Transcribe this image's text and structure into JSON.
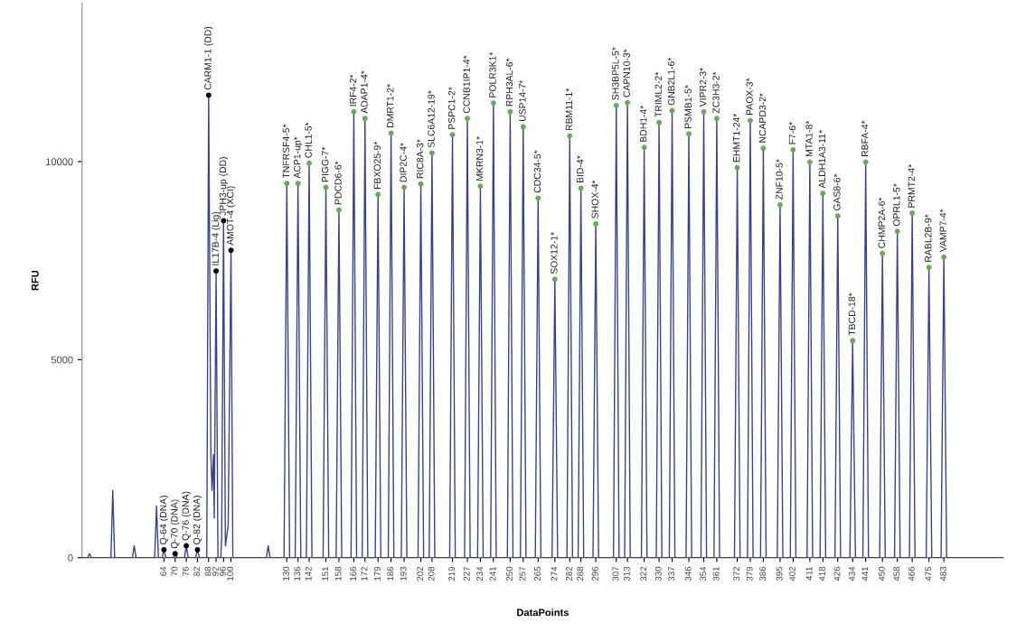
{
  "chart_data": {
    "type": "line",
    "xlabel": "DataPoints",
    "ylabel": "RFU",
    "xlim": [
      20,
      515
    ],
    "ylim": [
      0,
      14000
    ],
    "yticks": [
      0,
      5000,
      10000
    ],
    "xticks": [
      64,
      70,
      76,
      82,
      88,
      92,
      96,
      100,
      130,
      136,
      142,
      151,
      158,
      166,
      172,
      179,
      186,
      193,
      202,
      208,
      219,
      227,
      234,
      241,
      250,
      257,
      265,
      274,
      282,
      288,
      296,
      307,
      313,
      322,
      330,
      337,
      346,
      354,
      361,
      372,
      379,
      386,
      395,
      402,
      411,
      418,
      426,
      434,
      441,
      450,
      458,
      466,
      475,
      483
    ],
    "series": [
      {
        "color": "#3a4288",
        "marker": "none",
        "x": [
          20,
          23,
          24,
          25,
          35.5,
          36.5,
          37.5,
          47,
          48,
          49,
          59,
          60,
          61,
          63,
          64,
          65,
          69,
          70,
          71,
          75,
          76,
          77,
          81,
          82,
          83,
          87,
          88,
          89.2,
          89.8,
          90.6,
          91,
          92,
          93,
          94.5,
          95,
          96,
          97,
          98.5,
          100,
          101,
          119,
          120,
          121,
          128.5,
          130,
          131.5,
          134.5,
          136,
          137.5,
          140.5,
          142,
          143.5,
          149.5,
          151,
          152.5,
          156.5,
          158,
          159.5,
          164.5,
          166,
          167.5,
          170.5,
          172,
          173.5,
          177.5,
          179,
          180.5,
          184.5,
          186,
          187.5,
          191.5,
          193,
          194.5,
          200.5,
          202,
          203.5,
          206.5,
          208,
          209.5,
          217.5,
          219,
          220.5,
          225.5,
          227,
          228.5,
          232.5,
          234,
          235.5,
          239.5,
          241,
          242.5,
          248.5,
          250,
          251.5,
          255.5,
          257,
          258.5,
          263.5,
          265,
          266.5,
          272.5,
          274,
          275.5,
          280.5,
          282,
          283.5,
          286.5,
          288,
          289.5,
          294.5,
          296,
          297.5,
          305.5,
          307,
          308.5,
          311.5,
          313,
          314.5,
          320.5,
          322,
          323.5,
          328.5,
          330,
          331.5,
          335.5,
          337,
          338.5,
          344.5,
          346,
          347.5,
          352.5,
          354,
          355.5,
          359.5,
          361,
          362.5,
          370.5,
          372,
          373.5,
          377.5,
          379,
          380.5,
          384.5,
          386,
          387.5,
          393.5,
          395,
          396.5,
          400.5,
          402,
          403.5,
          409.5,
          411,
          412.5,
          416.5,
          418,
          419.5,
          424.5,
          426,
          427.5,
          432.5,
          434,
          435.5,
          439.5,
          441,
          442.5,
          448.5,
          450,
          451.5,
          456.5,
          458,
          459.5,
          464.5,
          466,
          467.5,
          473.5,
          475,
          476.5,
          481.5,
          483,
          484.5,
          515
        ],
        "values": [
          0,
          0,
          100,
          0,
          0,
          1700,
          0,
          0,
          300,
          0,
          0,
          1300,
          0,
          0,
          200,
          0,
          0,
          100,
          0,
          0,
          300,
          0,
          0,
          200,
          0,
          0,
          11680,
          2600,
          1700,
          2600,
          1000,
          7240,
          0,
          0,
          500,
          8510,
          300,
          800,
          7760,
          0,
          0,
          300,
          0,
          0,
          9450,
          0,
          0,
          9450,
          0,
          0,
          9960,
          0,
          0,
          9350,
          0,
          0,
          8780,
          0,
          0,
          11260,
          0,
          0,
          11090,
          0,
          0,
          9170,
          0,
          0,
          10720,
          0,
          0,
          9350,
          0,
          0,
          9440,
          0,
          0,
          10220,
          0,
          0,
          10680,
          0,
          0,
          11090,
          0,
          0,
          9380,
          0,
          0,
          11480,
          0,
          0,
          11260,
          0,
          0,
          10880,
          0,
          0,
          9080,
          0,
          0,
          7030,
          0,
          0,
          10650,
          0,
          0,
          9330,
          0,
          0,
          8430,
          0,
          0,
          11420,
          0,
          0,
          11490,
          0,
          0,
          10360,
          0,
          0,
          10990,
          0,
          0,
          11290,
          0,
          0,
          10700,
          0,
          0,
          11260,
          0,
          0,
          11090,
          0,
          0,
          9850,
          0,
          0,
          11040,
          0,
          0,
          10340,
          0,
          0,
          8910,
          0,
          0,
          10300,
          0,
          0,
          9990,
          0,
          0,
          9200,
          0,
          0,
          8630,
          0,
          0,
          5480,
          0,
          0,
          9990,
          0,
          0,
          7680,
          0,
          0,
          8240,
          0,
          0,
          8700,
          0,
          0,
          7330,
          0,
          0,
          7590,
          0,
          0
        ]
      },
      {
        "type": "scatter",
        "color": "#000000",
        "marker": "circle",
        "x": [
          64,
          70,
          76,
          82,
          88,
          92,
          96,
          100
        ],
        "values": [
          200,
          100,
          300,
          200,
          11680,
          7240,
          8510,
          7760
        ]
      },
      {
        "type": "scatter",
        "color": "#6aaa5a",
        "marker": "circle",
        "x": [
          130,
          136,
          142,
          151,
          158,
          166,
          172,
          179,
          186,
          193,
          202,
          208,
          219,
          227,
          234,
          241,
          250,
          257,
          265,
          274,
          282,
          288,
          296,
          307,
          313,
          322,
          330,
          337,
          346,
          354,
          361,
          372,
          379,
          386,
          395,
          402,
          411,
          418,
          426,
          434,
          441,
          450,
          458,
          466,
          475,
          483
        ],
        "values": [
          9450,
          9450,
          9960,
          9350,
          8780,
          11260,
          11090,
          9170,
          10720,
          9350,
          9440,
          10220,
          10680,
          11090,
          9380,
          11480,
          11260,
          10880,
          9080,
          7030,
          10650,
          9330,
          8430,
          11420,
          11490,
          10360,
          10990,
          11290,
          10700,
          11260,
          11090,
          9850,
          11040,
          10340,
          8910,
          10300,
          9990,
          9200,
          8630,
          5480,
          9990,
          7680,
          8240,
          8700,
          7330,
          7590
        ]
      }
    ],
    "annotations": [
      {
        "text": "Q-64 (DNA)",
        "x": 64,
        "y": 200
      },
      {
        "text": "Q-70 (DNA)",
        "x": 70,
        "y": 100
      },
      {
        "text": "Q-76 (DNA)",
        "x": 76,
        "y": 300
      },
      {
        "text": "Q-82 (DNA)",
        "x": 82,
        "y": 200
      },
      {
        "text": "CARM1-1 (DD)",
        "x": 88,
        "y": 11680
      },
      {
        "text": "IL17B-4 (Lig)",
        "x": 92,
        "y": 7240
      },
      {
        "text": "JPH3-up (DD)",
        "x": 96,
        "y": 8510
      },
      {
        "text": "AMOT-4 (XCI)",
        "x": 100,
        "y": 7760
      },
      {
        "text": "TNFRSF4-5*",
        "x": 130,
        "y": 9450
      },
      {
        "text": "ACP1-up*",
        "x": 136,
        "y": 9450
      },
      {
        "text": "CHL1-5*",
        "x": 142,
        "y": 9960
      },
      {
        "text": "PIGG-7*",
        "x": 151,
        "y": 9350
      },
      {
        "text": "PDCD6-6*",
        "x": 158,
        "y": 8780
      },
      {
        "text": "IRF4-2*",
        "x": 166,
        "y": 11260
      },
      {
        "text": "ADAP1-4*",
        "x": 172,
        "y": 11090
      },
      {
        "text": "FBXO25-9*",
        "x": 179,
        "y": 9170
      },
      {
        "text": "DMRT1-2*",
        "x": 186,
        "y": 10720
      },
      {
        "text": "DIP2C-4*",
        "x": 193,
        "y": 9350
      },
      {
        "text": "RIC8A-3*",
        "x": 202,
        "y": 9440
      },
      {
        "text": "SLC6A12-19*",
        "x": 208,
        "y": 10220
      },
      {
        "text": "PSPC1-2*",
        "x": 219,
        "y": 10680
      },
      {
        "text": "CCNB1IP1-4*",
        "x": 227,
        "y": 11090
      },
      {
        "text": "MKRN3-1*",
        "x": 234,
        "y": 9380
      },
      {
        "text": "POLR3K1*",
        "x": 241,
        "y": 11480
      },
      {
        "text": "RPH3AL-6*",
        "x": 250,
        "y": 11260
      },
      {
        "text": "USP14-7*",
        "x": 257,
        "y": 10880
      },
      {
        "text": "CDC34-5*",
        "x": 265,
        "y": 9080
      },
      {
        "text": "SOX12-1*",
        "x": 274,
        "y": 7030
      },
      {
        "text": "RBM11-1*",
        "x": 282,
        "y": 10650
      },
      {
        "text": "BID-4*",
        "x": 288,
        "y": 9330
      },
      {
        "text": "SHOX-4*",
        "x": 296,
        "y": 8430
      },
      {
        "text": "SH3BP5L-5*",
        "x": 307,
        "y": 11420
      },
      {
        "text": "CAPN10-3*",
        "x": 313,
        "y": 11490
      },
      {
        "text": "BDH1-4*",
        "x": 322,
        "y": 10360
      },
      {
        "text": "TRIML2-2*",
        "x": 330,
        "y": 10990
      },
      {
        "text": "GNB2L1-6*",
        "x": 337,
        "y": 11290
      },
      {
        "text": "PSMB1-5*",
        "x": 346,
        "y": 10700
      },
      {
        "text": "VIPR2-3*",
        "x": 354,
        "y": 11260
      },
      {
        "text": "ZC3H3-2*",
        "x": 361,
        "y": 11090
      },
      {
        "text": "EHMT1-24*",
        "x": 372,
        "y": 9850
      },
      {
        "text": "PAOX-3*",
        "x": 379,
        "y": 11040
      },
      {
        "text": "NCAPD3-2*",
        "x": 386,
        "y": 10340
      },
      {
        "text": "ZNF10-5*",
        "x": 395,
        "y": 8910
      },
      {
        "text": "F7-6*",
        "x": 402,
        "y": 10300
      },
      {
        "text": "MTA1-8*",
        "x": 411,
        "y": 9990
      },
      {
        "text": "ALDH1A3-11*",
        "x": 418,
        "y": 9200
      },
      {
        "text": "GAS8-6*",
        "x": 426,
        "y": 8630
      },
      {
        "text": "TBCD-18*",
        "x": 434,
        "y": 5480
      },
      {
        "text": "RBFA-4*",
        "x": 441,
        "y": 9990
      },
      {
        "text": "CHMP2A-6*",
        "x": 450,
        "y": 7680
      },
      {
        "text": "OPRL1-5*",
        "x": 458,
        "y": 8240
      },
      {
        "text": "PRMT2-4*",
        "x": 466,
        "y": 8700
      },
      {
        "text": "RABL2B-9*",
        "x": 475,
        "y": 7330
      },
      {
        "text": "VAMP7-4*",
        "x": 483,
        "y": 7590
      }
    ]
  }
}
